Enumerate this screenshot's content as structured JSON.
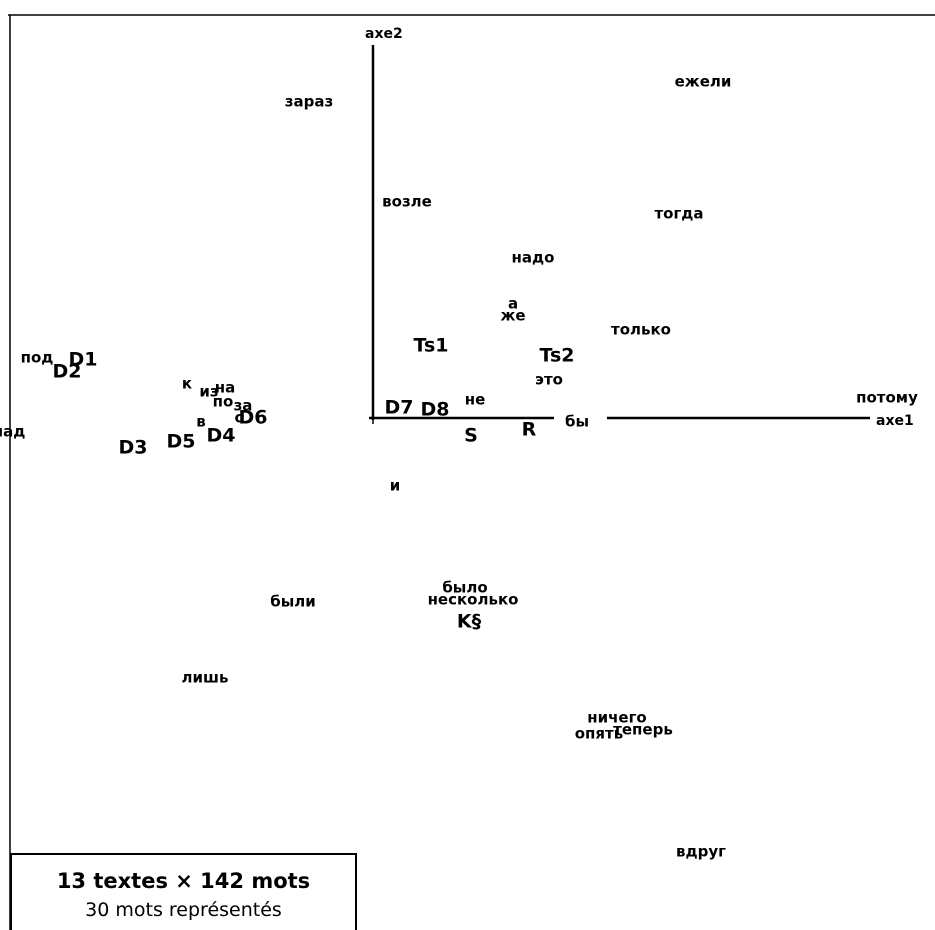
{
  "chart_data": {
    "type": "scatter",
    "title": "",
    "axes": {
      "x_label": "axe1",
      "y_label": "axe2"
    },
    "words": [
      {
        "label": "ежели",
        "x": 1.65,
        "y": 1.68
      },
      {
        "label": "зараз",
        "x": -0.32,
        "y": 1.58
      },
      {
        "label": "возле",
        "x": 0.17,
        "y": 1.08
      },
      {
        "label": "тогда",
        "x": 1.53,
        "y": 1.02
      },
      {
        "label": "надо",
        "x": 0.8,
        "y": 0.8
      },
      {
        "label": "а",
        "x": 0.7,
        "y": 0.57
      },
      {
        "label": "же",
        "x": 0.7,
        "y": 0.51
      },
      {
        "label": "только",
        "x": 1.34,
        "y": 0.44
      },
      {
        "label": "это",
        "x": 0.88,
        "y": 0.19
      },
      {
        "label": "потому",
        "x": 2.57,
        "y": 0.1
      },
      {
        "label": "не",
        "x": 0.51,
        "y": 0.09
      },
      {
        "label": "бы",
        "x": 1.02,
        "y": -0.02
      },
      {
        "label": "под",
        "x": -1.68,
        "y": 0.3
      },
      {
        "label": "к",
        "x": -0.93,
        "y": 0.17
      },
      {
        "label": "из",
        "x": -0.82,
        "y": 0.13
      },
      {
        "label": "на",
        "x": -0.74,
        "y": 0.15
      },
      {
        "label": "по",
        "x": -0.75,
        "y": 0.08
      },
      {
        "label": "за",
        "x": -0.65,
        "y": 0.06
      },
      {
        "label": "с",
        "x": -0.67,
        "y": 0.0
      },
      {
        "label": "в",
        "x": -0.86,
        "y": -0.02
      },
      {
        "label": "над",
        "x": -1.82,
        "y": -0.07
      },
      {
        "label": "и",
        "x": 0.11,
        "y": -0.34
      },
      {
        "label": "были",
        "x": -0.4,
        "y": -0.92
      },
      {
        "label": "было",
        "x": 0.46,
        "y": -0.85
      },
      {
        "label": "несколько",
        "x": 0.5,
        "y": -0.91
      },
      {
        "label": "лишь",
        "x": -0.84,
        "y": -1.3
      },
      {
        "label": "ничего",
        "x": 1.22,
        "y": -1.5
      },
      {
        "label": "опять",
        "x": 1.13,
        "y": -1.58
      },
      {
        "label": "теперь",
        "x": 1.35,
        "y": -1.56
      },
      {
        "label": "вдруг",
        "x": 1.64,
        "y": -2.17
      }
    ],
    "texts": [
      {
        "label": "D1",
        "x": -1.45,
        "y": 0.29
      },
      {
        "label": "D2",
        "x": -1.53,
        "y": 0.23
      },
      {
        "label": "D3",
        "x": -1.2,
        "y": -0.15
      },
      {
        "label": "D4",
        "x": -0.76,
        "y": -0.09
      },
      {
        "label": "D5",
        "x": -0.96,
        "y": -0.12
      },
      {
        "label": "D6",
        "x": -0.6,
        "y": 0.0
      },
      {
        "label": "D7",
        "x": 0.13,
        "y": 0.05
      },
      {
        "label": "D8",
        "x": 0.31,
        "y": 0.04
      },
      {
        "label": "Ts1",
        "x": 0.29,
        "y": 0.36
      },
      {
        "label": "Ts2",
        "x": 0.92,
        "y": 0.31
      },
      {
        "label": "S",
        "x": 0.49,
        "y": -0.09
      },
      {
        "label": "R",
        "x": 0.78,
        "y": -0.06
      },
      {
        "label": "K§",
        "x": 0.48,
        "y": -1.02
      }
    ]
  },
  "legend": {
    "line1": "13 textes × 142 mots",
    "line2": "30 mots représentés"
  }
}
